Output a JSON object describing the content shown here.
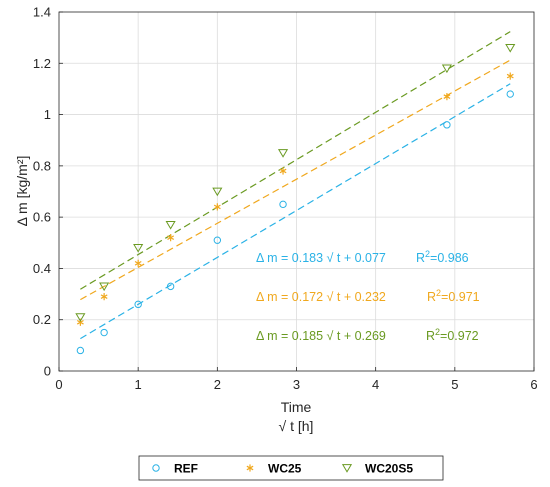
{
  "chart_data": {
    "type": "scatter",
    "xlabel": "Time",
    "xlabel2": "√ t [h]",
    "ylabel": "Δ m  [kg/m²]",
    "xlim": [
      0,
      6
    ],
    "ylim": [
      0,
      1.4
    ],
    "x_ticks": [
      "0",
      "1",
      "2",
      "3",
      "4",
      "5",
      "6"
    ],
    "y_ticks": [
      "0",
      "0.2",
      "0.4",
      "0.6",
      "0.8",
      "1",
      "1.2",
      "1.4"
    ],
    "grid": true,
    "legend_position": "bottom",
    "series": [
      {
        "name": "REF",
        "color": "#2AB2E6",
        "marker": "circle",
        "x": [
          0.27,
          0.57,
          1.0,
          1.41,
          2.0,
          2.83,
          4.9,
          5.7
        ],
        "y": [
          0.08,
          0.15,
          0.26,
          0.33,
          0.51,
          0.65,
          0.96,
          1.08
        ],
        "fit": {
          "slope": 0.183,
          "intercept": 0.077
        },
        "annotation": "Δ m = 0.183 √ t + 0.077",
        "r2_label": "R",
        "r2_value": "=0.986"
      },
      {
        "name": "WC25",
        "color": "#F0A81E",
        "marker": "asterisk",
        "x": [
          0.27,
          0.57,
          1.0,
          1.41,
          2.0,
          2.83,
          4.9,
          5.7
        ],
        "y": [
          0.19,
          0.29,
          0.42,
          0.52,
          0.64,
          0.78,
          1.07,
          1.15
        ],
        "fit": {
          "slope": 0.172,
          "intercept": 0.232
        },
        "annotation": "Δ m = 0.172 √ t + 0.232",
        "r2_label": "R",
        "r2_value": "=0.971"
      },
      {
        "name": "WC20S5",
        "color": "#6A9A22",
        "marker": "triangle-down",
        "x": [
          0.27,
          0.57,
          1.0,
          1.41,
          2.0,
          2.83,
          4.9,
          5.7
        ],
        "y": [
          0.21,
          0.33,
          0.48,
          0.57,
          0.7,
          0.85,
          1.18,
          1.26
        ],
        "fit": {
          "slope": 0.185,
          "intercept": 0.269
        },
        "annotation": "Δ m = 0.185 √ t + 0.269",
        "r2_label": "R",
        "r2_value": "=0.972"
      }
    ]
  }
}
